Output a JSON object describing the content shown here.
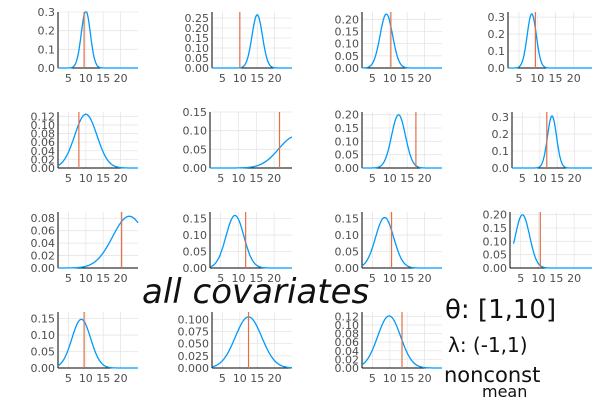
{
  "colors": {
    "curve": "#009AFA",
    "vline": "#E26F46",
    "grid": "#E6E6E6",
    "axis": "#000000",
    "tick_text": "#4D4D4D"
  },
  "chart_data": [
    {
      "type": "line",
      "xlim": [
        2,
        25
      ],
      "xticks": [
        5,
        10,
        15,
        20
      ],
      "xticklabels": [
        "5",
        "10",
        "15",
        "20"
      ],
      "ylim": [
        0,
        0.3
      ],
      "yticks": [
        0,
        0.1,
        0.2,
        0.3
      ],
      "yticklabels": [
        "0.0",
        "0.1",
        "0.2",
        "0.3"
      ],
      "grid": true,
      "curve": {
        "mean": 10,
        "sd": 1.3
      },
      "vline_x": 9.5,
      "x_domain": [
        2,
        25
      ]
    },
    {
      "type": "line",
      "xlim": [
        2,
        25
      ],
      "xticks": [
        5,
        10,
        15,
        20
      ],
      "xticklabels": [
        "5",
        "10",
        "15",
        "20"
      ],
      "ylim": [
        0,
        0.28
      ],
      "yticks": [
        0,
        0.05,
        0.1,
        0.15,
        0.2,
        0.25
      ],
      "yticklabels": [
        "0.00",
        "0.05",
        "0.10",
        "0.15",
        "0.20",
        "0.25"
      ],
      "grid": true,
      "curve": {
        "mean": 15,
        "sd": 1.5
      },
      "vline_x": 10,
      "x_domain": [
        2,
        25
      ]
    },
    {
      "type": "line",
      "xlim": [
        2,
        25
      ],
      "xticks": [
        5,
        10,
        15,
        20
      ],
      "xticklabels": [
        "5",
        "10",
        "15",
        "20"
      ],
      "ylim": [
        0,
        0.23
      ],
      "yticks": [
        0,
        0.05,
        0.1,
        0.15,
        0.2
      ],
      "yticklabels": [
        "0.00",
        "0.05",
        "0.10",
        "0.15",
        "0.20"
      ],
      "grid": true,
      "curve": {
        "mean": 9,
        "sd": 1.8
      },
      "vline_x": 10.3,
      "x_domain": [
        2,
        25
      ]
    },
    {
      "type": "line",
      "xlim": [
        2,
        25
      ],
      "xticks": [
        5,
        10,
        15,
        20
      ],
      "xticklabels": [
        "5",
        "10",
        "15",
        "20"
      ],
      "ylim": [
        0,
        0.33
      ],
      "yticks": [
        0,
        0.1,
        0.2,
        0.3
      ],
      "yticklabels": [
        "0.0",
        "0.1",
        "0.2",
        "0.3"
      ],
      "grid": true,
      "curve": {
        "mean": 8.5,
        "sd": 1.25
      },
      "vline_x": 9.5,
      "x_domain": [
        2,
        25
      ]
    },
    {
      "type": "line",
      "xlim": [
        2,
        25
      ],
      "xticks": [
        5,
        10,
        15,
        20
      ],
      "xticklabels": [
        "5",
        "10",
        "15",
        "20"
      ],
      "ylim": [
        0,
        0.13
      ],
      "yticks": [
        0,
        0.02,
        0.04,
        0.06,
        0.08,
        0.1,
        0.12
      ],
      "yticklabels": [
        "0.00",
        "0.02",
        "0.04",
        "0.06",
        "0.08",
        "0.10",
        "0.12"
      ],
      "grid": true,
      "curve": {
        "mean": 10,
        "sd": 3.2
      },
      "vline_x": 8,
      "x_domain": [
        2,
        25
      ]
    },
    {
      "type": "line",
      "xlim": [
        2,
        25
      ],
      "xticks": [
        5,
        10,
        15,
        20
      ],
      "xticklabels": [
        "5",
        "10",
        "15",
        "20"
      ],
      "ylim": [
        0,
        0.15
      ],
      "yticks": [
        0,
        0.05,
        0.1,
        0.15
      ],
      "yticklabels": [
        "0.00",
        "0.05",
        "0.10",
        "0.15"
      ],
      "grid": true,
      "curve": {
        "mean": 26,
        "sd": 4.7
      },
      "vline_x": 21.5,
      "x_domain": [
        2,
        25
      ]
    },
    {
      "type": "line",
      "xlim": [
        2,
        25
      ],
      "xticks": [
        5,
        10,
        15,
        20
      ],
      "xticklabels": [
        "5",
        "10",
        "15",
        "20"
      ],
      "ylim": [
        0,
        0.21
      ],
      "yticks": [
        0,
        0.05,
        0.1,
        0.15,
        0.2
      ],
      "yticklabels": [
        "0.00",
        "0.05",
        "0.10",
        "0.15",
        "0.20"
      ],
      "grid": true,
      "curve": {
        "mean": 12.5,
        "sd": 2.0
      },
      "vline_x": 17.5,
      "x_domain": [
        2,
        25
      ]
    },
    {
      "type": "line",
      "xlim": [
        2,
        25
      ],
      "xticks": [
        5,
        10,
        15,
        20
      ],
      "xticklabels": [
        "5",
        "10",
        "15",
        "20"
      ],
      "ylim": [
        0,
        0.33
      ],
      "yticks": [
        0,
        0.1,
        0.2,
        0.3
      ],
      "yticklabels": [
        "0.0",
        "0.1",
        "0.2",
        "0.3"
      ],
      "grid": true,
      "curve": {
        "mean": 13.5,
        "sd": 1.3
      },
      "vline_x": 12,
      "x_domain": [
        2,
        25
      ]
    },
    {
      "type": "line",
      "xlim": [
        2,
        25
      ],
      "xticks": [
        5,
        10,
        15,
        20
      ],
      "xticklabels": [
        "5",
        "10",
        "15",
        "20"
      ],
      "ylim": [
        0,
        0.09
      ],
      "yticks": [
        0,
        0.02,
        0.04,
        0.06,
        0.08
      ],
      "yticklabels": [
        "0.00",
        "0.02",
        "0.04",
        "0.06",
        "0.08"
      ],
      "grid": true,
      "curve": {
        "mean": 22.5,
        "sd": 4.8
      },
      "vline_x": 20.3,
      "x_domain": [
        2,
        25
      ]
    },
    {
      "type": "line",
      "xlim": [
        2,
        25
      ],
      "xticks": [
        5,
        10,
        15,
        20
      ],
      "xticklabels": [
        "5",
        "10",
        "15",
        "20"
      ],
      "ylim": [
        0,
        0.17
      ],
      "yticks": [
        0,
        0.05,
        0.1,
        0.15
      ],
      "yticklabels": [
        "0.00",
        "0.05",
        "0.10",
        "0.15"
      ],
      "grid": true,
      "curve": {
        "mean": 9,
        "sd": 2.5
      },
      "vline_x": 12,
      "x_domain": [
        2,
        25
      ]
    },
    {
      "type": "line",
      "xlim": [
        2,
        25
      ],
      "xticks": [
        5,
        10,
        15,
        20
      ],
      "xticklabels": [
        "5",
        "10",
        "15",
        "20"
      ],
      "ylim": [
        0,
        0.17
      ],
      "yticks": [
        0,
        0.05,
        0.1,
        0.15
      ],
      "yticklabels": [
        "0.00",
        "0.05",
        "0.10",
        "0.15"
      ],
      "grid": true,
      "curve": {
        "mean": 8.5,
        "sd": 2.6
      },
      "vline_x": 10.5,
      "x_domain": [
        2,
        25
      ]
    },
    {
      "type": "line",
      "xlim": [
        2,
        25
      ],
      "xticks": [
        5,
        10,
        15,
        20
      ],
      "xticklabels": [
        "5",
        "10",
        "15",
        "20"
      ],
      "ylim": [
        0,
        0.21
      ],
      "yticks": [
        0,
        0.05,
        0.1,
        0.15,
        0.2
      ],
      "yticklabels": [
        "0.00",
        "0.05",
        "0.10",
        "0.15",
        "0.20"
      ],
      "grid": true,
      "curve": {
        "mean": 5.5,
        "sd": 2.0
      },
      "vline_x": 10.5,
      "x_domain": [
        3,
        25
      ]
    },
    {
      "type": "line",
      "xlim": [
        2,
        25
      ],
      "xticks": [
        5,
        10,
        15,
        20
      ],
      "xticklabels": [
        "5",
        "10",
        "15",
        "20"
      ],
      "ylim": [
        0,
        0.17
      ],
      "yticks": [
        0,
        0.05,
        0.1,
        0.15
      ],
      "yticklabels": [
        "0.00",
        "0.05",
        "0.10",
        "0.15"
      ],
      "grid": true,
      "curve": {
        "mean": 8.7,
        "sd": 2.7
      },
      "vline_x": 9.5,
      "x_domain": [
        2,
        25
      ]
    },
    {
      "type": "line",
      "xlim": [
        2,
        25
      ],
      "xticks": [
        5,
        10,
        15,
        20
      ],
      "xticklabels": [
        "5",
        "10",
        "15",
        "20"
      ],
      "ylim": [
        0,
        0.115
      ],
      "yticks": [
        0,
        0.025,
        0.05,
        0.075,
        0.1
      ],
      "yticklabels": [
        "0.000",
        "0.025",
        "0.050",
        "0.075",
        "0.100"
      ],
      "grid": true,
      "curve": {
        "mean": 12.5,
        "sd": 3.8
      },
      "vline_x": 12.5,
      "x_domain": [
        2,
        25
      ]
    },
    {
      "type": "line",
      "xlim": [
        2,
        25
      ],
      "xticks": [
        5,
        10,
        15,
        20
      ],
      "xticklabels": [
        "5",
        "10",
        "15",
        "20"
      ],
      "ylim": [
        0,
        0.13
      ],
      "yticks": [
        0,
        0.02,
        0.04,
        0.06,
        0.08,
        0.1,
        0.12
      ],
      "yticklabels": [
        "0.00",
        "0.02",
        "0.04",
        "0.06",
        "0.08",
        "0.10",
        "0.12"
      ],
      "grid": true,
      "curve": {
        "mean": 9.8,
        "sd": 3.3
      },
      "vline_x": 13.5,
      "x_domain": [
        2,
        25
      ]
    }
  ],
  "annotation": {
    "main": "all covariates",
    "theta": "θ: [1,10]",
    "lambda": "λ: (-1,1)",
    "nonconst": "nonconst",
    "mean": "mean"
  }
}
